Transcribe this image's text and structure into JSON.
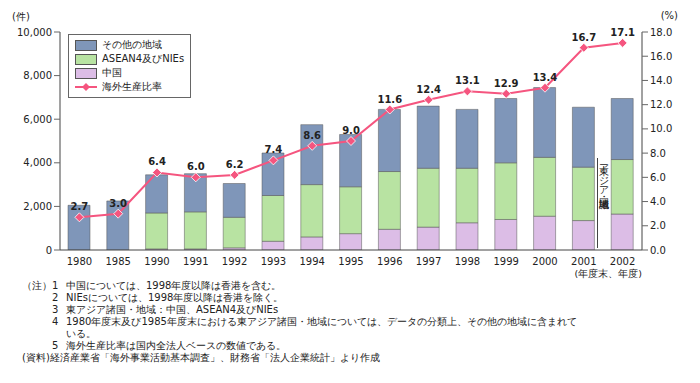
{
  "chart_data": {
    "type": "bar",
    "stacked": true,
    "grid": false,
    "legend": "upper left",
    "data_labels": true,
    "categories": [
      "1980",
      "1985",
      "1990",
      "1991",
      "1992",
      "1993",
      "1994",
      "1995",
      "1996",
      "1997",
      "1998",
      "1999",
      "2000",
      "2001",
      "2002"
    ],
    "x_label": "(年度末、年度)",
    "y_label": "(件)",
    "y2_label": "(%)",
    "ylim": [
      0,
      10000
    ],
    "yticks": [
      0,
      {
        "value": 2000,
        "label": "2,000"
      },
      {
        "value": 4000,
        "label": "4,000"
      },
      {
        "value": 6000,
        "label": "6,000"
      },
      {
        "value": 8000,
        "label": "8,000"
      },
      {
        "value": 10000,
        "label": "10,000"
      }
    ],
    "y2lim": [
      0,
      18
    ],
    "y2ticks": [
      {
        "value": 0,
        "label": "0.0"
      },
      {
        "value": 2,
        "label": "2.0"
      },
      {
        "value": 4,
        "label": "4.0"
      },
      {
        "value": 6,
        "label": "6.0"
      },
      {
        "value": 8,
        "label": "8.0"
      },
      {
        "value": 10,
        "label": "10.0"
      },
      {
        "value": 12,
        "label": "12.0"
      },
      {
        "value": 14,
        "label": "14.0"
      },
      {
        "value": 16,
        "label": "16.0"
      },
      {
        "value": 18,
        "label": "18.0"
      }
    ],
    "series": [
      {
        "name": "中国",
        "type": "bar",
        "color": "#dcbde6",
        "values": [
          0,
          0,
          50,
          50,
          100,
          400,
          600,
          750,
          950,
          1050,
          1250,
          1400,
          1550,
          1350,
          1650
        ]
      },
      {
        "name": "ASEAN4及びNIEs",
        "type": "bar",
        "color": "#b8e3a2",
        "values": [
          0,
          0,
          1650,
          1700,
          1400,
          2100,
          2400,
          2150,
          2650,
          2700,
          2500,
          2600,
          2700,
          2450,
          2500
        ]
      },
      {
        "name": "その他の地域",
        "type": "bar",
        "color": "#7f96b9",
        "values": [
          2050,
          2250,
          1750,
          1750,
          1550,
          1950,
          2750,
          2400,
          2850,
          2850,
          2700,
          2950,
          3200,
          2750,
          2800
        ]
      },
      {
        "name": "海外生産比率",
        "type": "line",
        "axis": "y2",
        "color": "#f5557f",
        "marker": "diamond",
        "line_style": "solid",
        "values": [
          2.7,
          3.0,
          6.4,
          6.0,
          6.2,
          7.4,
          8.6,
          9.0,
          11.6,
          12.4,
          13.1,
          12.9,
          13.4,
          16.7,
          17.1
        ],
        "value_labels": [
          "2.7",
          "3.0",
          "6.4",
          "6.0",
          "6.2",
          "7.4",
          "8.6",
          "9.0",
          "11.6",
          "12.4",
          "13.1",
          "12.9",
          "13.4",
          "16.7",
          "17.1"
        ]
      }
    ],
    "annotation": "東アジア諸国・地域",
    "notes": {
      "label": "（注）",
      "items": [
        {
          "number": "1",
          "text": "中国については、1998年度以降は香港を含む。"
        },
        {
          "number": "2",
          "text": "NIEsについては、1998年度以降は香港を除く。"
        },
        {
          "number": "3",
          "text": "東アジア諸国・地域：中国、ASEAN4及びNIEs"
        },
        {
          "number": "4",
          "text": "1980年度末及び1985年度末における東アジア諸国・地域については、データの分類上、その他の地域に含まれている。"
        },
        {
          "number": "5",
          "text": "海外生産比率は国内全法人ベースの数値である。"
        }
      ]
    },
    "source": "(資料)経済産業省「海外事業活動基本調査」、財務省「法人企業統計」より作成"
  }
}
